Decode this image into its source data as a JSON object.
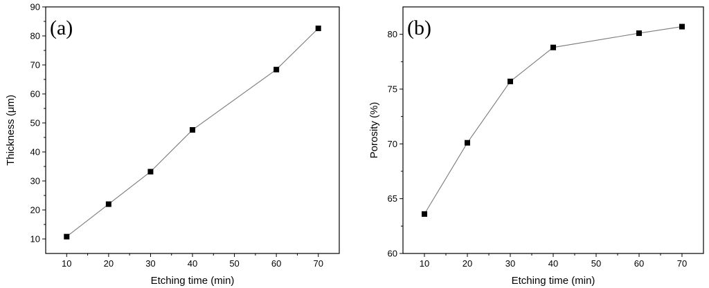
{
  "chart_data": [
    {
      "type": "line",
      "panel_label": "(a)",
      "xlabel": "Etching time (min)",
      "ylabel": "Thickness (μm)",
      "xlim": [
        5,
        75
      ],
      "ylim": [
        5,
        90
      ],
      "xticks": [
        10,
        20,
        30,
        40,
        50,
        60,
        70
      ],
      "yticks": [
        10,
        20,
        30,
        40,
        50,
        60,
        70,
        80,
        90
      ],
      "grid": false,
      "marker": "square",
      "series": [
        {
          "x": [
            10,
            20,
            30,
            40,
            60,
            70
          ],
          "y": [
            10.8,
            22.0,
            33.2,
            47.6,
            68.4,
            82.6
          ]
        }
      ]
    },
    {
      "type": "line",
      "panel_label": "(b)",
      "xlabel": "Etching time (min)",
      "ylabel": "Porosity (%)",
      "xlim": [
        5,
        75
      ],
      "ylim": [
        60,
        82.5
      ],
      "xticks": [
        10,
        20,
        30,
        40,
        50,
        60,
        70
      ],
      "yticks": [
        60,
        65,
        70,
        75,
        80
      ],
      "grid": false,
      "marker": "square",
      "series": [
        {
          "x": [
            10,
            20,
            30,
            40,
            60,
            70
          ],
          "y": [
            63.6,
            70.1,
            75.7,
            78.8,
            80.1,
            80.7
          ]
        }
      ]
    }
  ]
}
